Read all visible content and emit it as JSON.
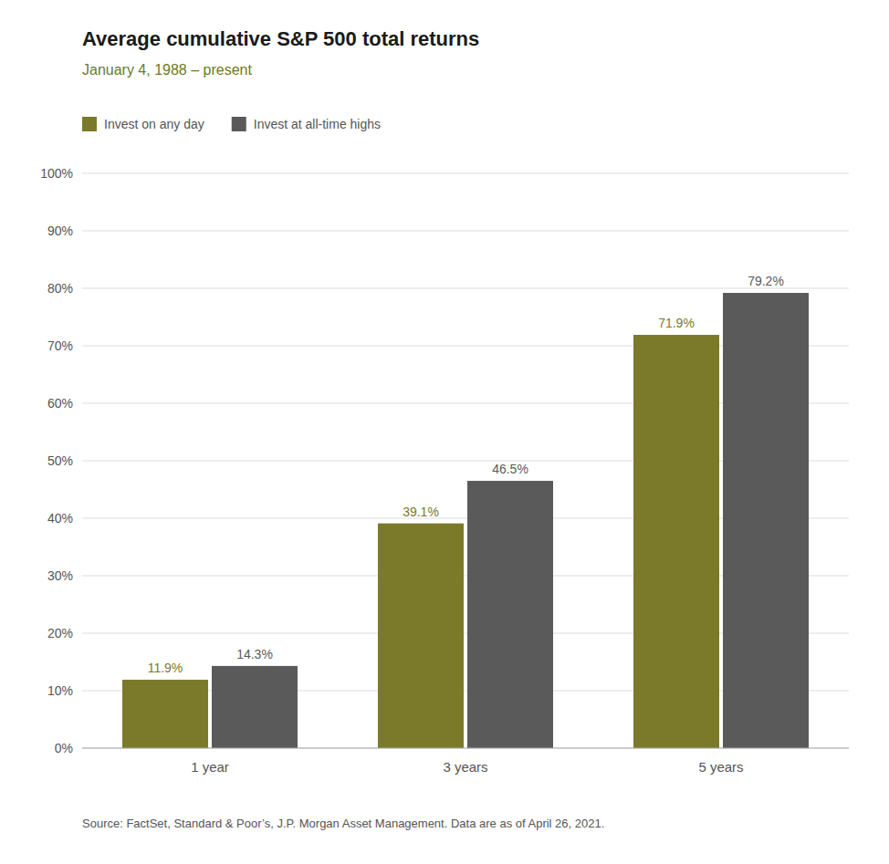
{
  "chart_data": {
    "type": "bar",
    "title": "Average cumulative S&P 500 total returns",
    "subtitle": "January 4, 1988 – present",
    "categories": [
      "1 year",
      "3 years",
      "5 years"
    ],
    "series": [
      {
        "name": "Invest on any day",
        "color": "#7a7a2a",
        "values": [
          11.9,
          39.1,
          71.9
        ],
        "value_labels": [
          "11.9%",
          "39.1%",
          "71.9%"
        ]
      },
      {
        "name": "Invest at all-time highs",
        "color": "#5a5a5a",
        "values": [
          14.3,
          46.5,
          79.2
        ],
        "value_labels": [
          "14.3%",
          "46.5%",
          "79.2%"
        ]
      }
    ],
    "ylim": [
      0,
      100
    ],
    "yticks": [
      {
        "value": 0,
        "label": "0%"
      },
      {
        "value": 10,
        "label": "10%"
      },
      {
        "value": 20,
        "label": "20%"
      },
      {
        "value": 30,
        "label": "30%"
      },
      {
        "value": 40,
        "label": "40%"
      },
      {
        "value": 50,
        "label": "50%"
      },
      {
        "value": 60,
        "label": "60%"
      },
      {
        "value": 70,
        "label": "70%"
      },
      {
        "value": 80,
        "label": "80%"
      },
      {
        "value": 90,
        "label": "90%"
      },
      {
        "value": 100,
        "label": "100%"
      }
    ],
    "grid": true,
    "legend": "upper left",
    "data_labels": true,
    "annotations": [
      "Source: FactSet, Standard & Poor’s, J.P. Morgan Asset Management. Data are as of April 26, 2021."
    ]
  }
}
